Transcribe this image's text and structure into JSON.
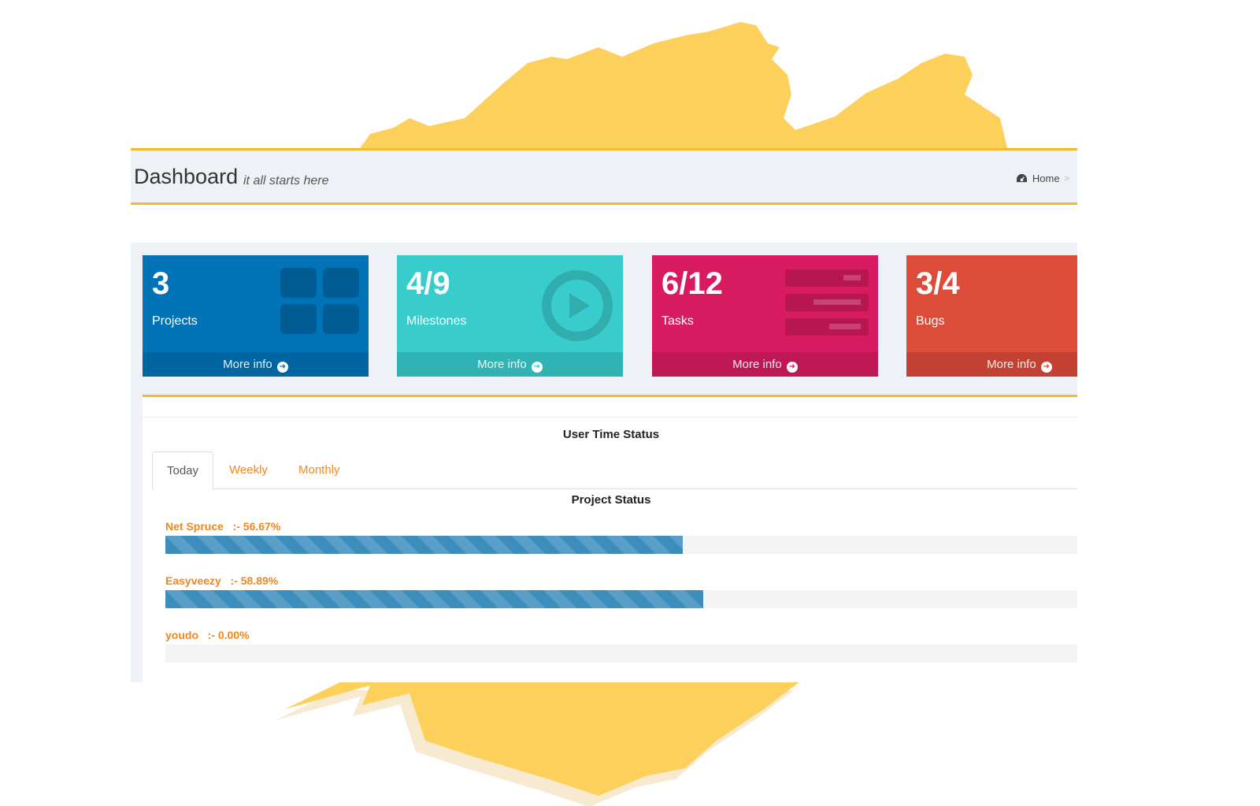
{
  "header": {
    "title": "Dashboard",
    "subtitle": "it all starts here",
    "breadcrumb_home": "Home",
    "breadcrumb_icon": "dashboard-icon"
  },
  "stat_boxes": [
    {
      "value": "3",
      "label": "Projects",
      "more": "More info",
      "color": "#0073b7",
      "icon": "grid-icon"
    },
    {
      "value": "4/9",
      "label": "Milestones",
      "more": "More info",
      "color": "#39cccc",
      "icon": "play-circle-icon"
    },
    {
      "value": "6/12",
      "label": "Tasks",
      "more": "More info",
      "color": "#d81b60",
      "icon": "list-icon"
    },
    {
      "value": "3/4",
      "label": "Bugs",
      "more": "More info",
      "color": "#dd4b39",
      "icon": "bug-icon"
    }
  ],
  "user_time": {
    "title": "User Time Status",
    "tabs": [
      "Today",
      "Weekly",
      "Monthly"
    ],
    "active_tab": "Today"
  },
  "project_status": {
    "title": "Project Status",
    "projects": [
      {
        "name": "Net Spruce",
        "percent_text": ":- 56.67%",
        "percent": 56.67
      },
      {
        "name": "Easyveezy",
        "percent_text": ":- 58.89%",
        "percent": 58.89
      },
      {
        "name": "youdo",
        "percent_text": ":- 0.00%",
        "percent": 0.0
      }
    ]
  },
  "colors": {
    "accent": "#f5b82e",
    "link": "#f0871f",
    "progress": "#3c8dbc"
  }
}
